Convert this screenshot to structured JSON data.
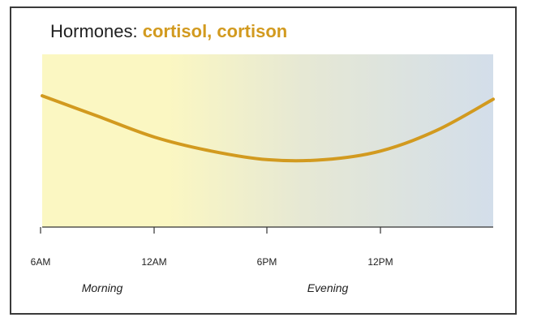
{
  "title": {
    "prefix": "Hormones:",
    "highlight": "cortisol, cortison"
  },
  "colors": {
    "line": "#d29a1f",
    "background_start": "#fbf7c2",
    "background_end": "#d3deea",
    "axis": "#333333",
    "text": "#1f1f1f"
  },
  "chart_data": {
    "type": "line",
    "title": "Hormones: cortisol, cortison",
    "x_ticks": [
      "6AM",
      "12AM",
      "6PM",
      "12PM"
    ],
    "period_labels": [
      "Morning",
      "Evening"
    ],
    "xlabel": "",
    "ylabel": "",
    "y_axis_labeled": false,
    "series": [
      {
        "x": [
          0,
          3,
          6,
          9,
          12,
          15,
          18,
          21,
          24
        ],
        "values": [
          0.76,
          0.64,
          0.52,
          0.44,
          0.39,
          0.39,
          0.44,
          0.56,
          0.74
        ]
      }
    ],
    "xlim": [
      0,
      24
    ],
    "ylim": [
      0,
      1
    ],
    "grid": false,
    "legend": "none"
  }
}
